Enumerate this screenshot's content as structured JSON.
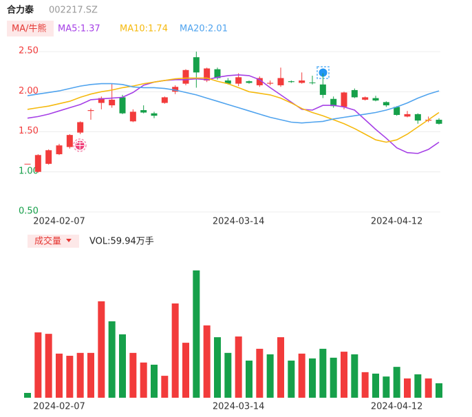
{
  "chart_data": [
    {
      "type": "candlestick",
      "title": "合力泰",
      "subtitle": "002217.SZ",
      "legend_label": "MA/牛熊",
      "annotations": [
        "牛"
      ],
      "categories": [
        null,
        null,
        null,
        "2024-02-07",
        null,
        null,
        null,
        null,
        null,
        null,
        null,
        null,
        null,
        null,
        null,
        null,
        null,
        null,
        null,
        null,
        "2024-03-14",
        null,
        null,
        null,
        null,
        null,
        null,
        null,
        null,
        null,
        null,
        null,
        null,
        null,
        null,
        "2024-04-12",
        null,
        null,
        null,
        null
      ],
      "open": [
        1.1,
        1.0,
        1.1,
        1.22,
        1.31,
        1.49,
        1.76,
        1.86,
        1.83,
        1.93,
        1.63,
        1.77,
        1.73,
        1.86,
        2.0,
        2.1,
        2.43,
        2.14,
        2.28,
        2.14,
        2.1,
        2.13,
        2.08,
        2.1,
        2.08,
        2.13,
        2.11,
        2.115,
        2.09,
        1.91,
        1.81,
        2.02,
        1.9,
        1.92,
        1.87,
        1.81,
        1.69,
        1.72,
        1.64,
        1.65
      ],
      "high": [
        1.1,
        1.22,
        1.28,
        1.35,
        1.47,
        1.63,
        1.79,
        1.94,
        2.1,
        1.96,
        1.78,
        1.83,
        1.75,
        1.94,
        2.08,
        2.28,
        2.5,
        2.3,
        2.3,
        2.17,
        2.23,
        2.14,
        2.19,
        2.14,
        2.3,
        2.14,
        2.24,
        2.2,
        2.23,
        1.94,
        2.0,
        2.04,
        1.94,
        1.95,
        1.88,
        1.82,
        1.76,
        1.73,
        1.69,
        1.67
      ],
      "low": [
        1.1,
        0.99,
        1.09,
        1.21,
        1.29,
        1.47,
        1.65,
        1.78,
        1.8,
        1.72,
        1.62,
        1.73,
        1.67,
        1.85,
        1.97,
        2.08,
        2.05,
        2.12,
        2.15,
        2.09,
        2.07,
        2.1,
        2.06,
        2.08,
        2.06,
        2.11,
        2.1,
        2.09,
        1.92,
        1.8,
        1.78,
        1.92,
        1.89,
        1.88,
        1.81,
        1.7,
        1.68,
        1.6,
        1.62,
        1.59
      ],
      "close": [
        1.1,
        1.21,
        1.27,
        1.33,
        1.46,
        1.62,
        1.77,
        1.92,
        1.9,
        1.73,
        1.75,
        1.74,
        1.7,
        1.93,
        2.06,
        2.27,
        2.24,
        2.29,
        2.17,
        2.1,
        2.18,
        2.11,
        2.17,
        2.11,
        2.17,
        2.12,
        2.14,
        2.11,
        1.96,
        1.82,
        1.99,
        1.93,
        1.93,
        1.89,
        1.83,
        1.71,
        1.72,
        1.64,
        1.65,
        1.6
      ],
      "up_color": "#f23b3b",
      "down_color": "#16a04a",
      "series": [
        {
          "name": "MA5:1.37",
          "color": "#a53fe6",
          "values": [
            1.67,
            1.69,
            1.72,
            1.76,
            1.8,
            1.84,
            1.9,
            1.91,
            1.92,
            1.93,
            1.99,
            2.08,
            2.12,
            2.14,
            2.15,
            2.15,
            2.16,
            2.15,
            2.18,
            2.2,
            2.21,
            2.2,
            2.15,
            2.05,
            1.96,
            1.87,
            1.78,
            1.77,
            1.83,
            1.83,
            1.81,
            1.77,
            1.65,
            1.53,
            1.42,
            1.3,
            1.24,
            1.23,
            1.28,
            1.37
          ]
        },
        {
          "name": "MA10:1.74",
          "color": "#f5b90d",
          "values": [
            1.78,
            1.8,
            1.82,
            1.85,
            1.88,
            1.93,
            1.97,
            2.0,
            2.02,
            2.05,
            2.07,
            2.1,
            2.12,
            2.14,
            2.16,
            2.17,
            2.17,
            2.17,
            2.13,
            2.1,
            2.05,
            2.0,
            1.98,
            1.96,
            1.92,
            1.86,
            1.79,
            1.74,
            1.7,
            1.65,
            1.6,
            1.54,
            1.47,
            1.4,
            1.37,
            1.4,
            1.47,
            1.56,
            1.65,
            1.74
          ]
        },
        {
          "name": "MA20:2.01",
          "color": "#4fa3ee",
          "values": [
            1.95,
            1.97,
            1.99,
            2.01,
            2.04,
            2.07,
            2.09,
            2.1,
            2.1,
            2.09,
            2.06,
            2.05,
            2.05,
            2.04,
            2.02,
            1.99,
            1.96,
            1.92,
            1.88,
            1.84,
            1.8,
            1.76,
            1.72,
            1.68,
            1.65,
            1.62,
            1.61,
            1.62,
            1.63,
            1.66,
            1.68,
            1.7,
            1.72,
            1.74,
            1.77,
            1.81,
            1.86,
            1.92,
            1.97,
            2.01
          ]
        }
      ],
      "ylim": [
        0.5,
        2.5
      ],
      "yticks": [
        {
          "value": 2.5,
          "label": "2.50"
        },
        {
          "value": 2.0,
          "label": "2.00"
        },
        {
          "value": 1.5,
          "label": "1.50"
        },
        {
          "value": 1.0,
          "label": "1.00"
        },
        {
          "value": 0.5,
          "label": "0.50"
        }
      ],
      "ytick_colors": [
        "#f23b3b",
        "#f23b3b",
        "#f23b3b",
        "#16a04a",
        "#16a04a"
      ],
      "grid": true
    },
    {
      "type": "bar",
      "title": "成交量",
      "subtitle": "VOL:59.94万手",
      "categories": [
        null,
        null,
        null,
        "2024-02-07",
        null,
        null,
        null,
        null,
        null,
        null,
        null,
        null,
        null,
        null,
        null,
        null,
        null,
        null,
        null,
        null,
        "2024-03-14",
        null,
        null,
        null,
        null,
        null,
        null,
        null,
        null,
        null,
        null,
        null,
        null,
        null,
        null,
        "2024-04-12",
        null,
        null,
        null,
        null
      ],
      "values": [
        20,
        271,
        265,
        183,
        174,
        186,
        186,
        400,
        317,
        263,
        186,
        146,
        137,
        91,
        391,
        228,
        528,
        300,
        251,
        186,
        254,
        154,
        203,
        180,
        251,
        154,
        183,
        163,
        203,
        166,
        191,
        180,
        106,
        100,
        88,
        128,
        80,
        97,
        80,
        59.94
      ],
      "colors": [
        "#16a04a",
        "#f23b3b",
        "#f23b3b",
        "#f23b3b",
        "#f23b3b",
        "#f23b3b",
        "#f23b3b",
        "#f23b3b",
        "#16a04a",
        "#16a04a",
        "#f23b3b",
        "#f23b3b",
        "#16a04a",
        "#f23b3b",
        "#f23b3b",
        "#f23b3b",
        "#16a04a",
        "#f23b3b",
        "#16a04a",
        "#16a04a",
        "#f23b3b",
        "#16a04a",
        "#f23b3b",
        "#16a04a",
        "#f23b3b",
        "#16a04a",
        "#f23b3b",
        "#16a04a",
        "#16a04a",
        "#16a04a",
        "#f23b3b",
        "#16a04a",
        "#f23b3b",
        "#16a04a",
        "#16a04a",
        "#16a04a",
        "#f23b3b",
        "#16a04a",
        "#f23b3b",
        "#16a04a"
      ],
      "ylim": [
        0,
        528
      ]
    }
  ]
}
